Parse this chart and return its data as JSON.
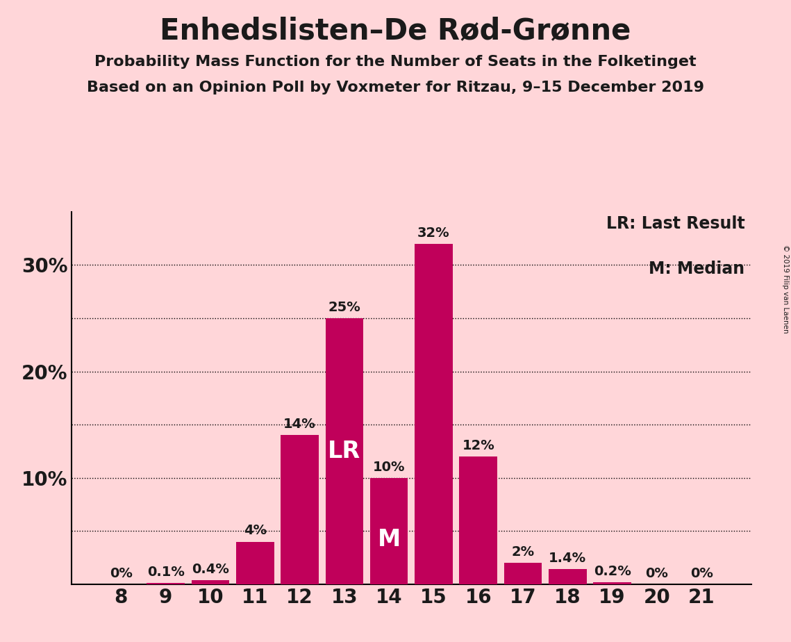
{
  "title": "Enhedslisten–De Rød-Grønne",
  "subtitle1": "Probability Mass Function for the Number of Seats in the Folketinget",
  "subtitle2": "Based on an Opinion Poll by Voxmeter for Ritzau, 9–15 December 2019",
  "copyright": "© 2019 Filip van Laenen",
  "categories": [
    8,
    9,
    10,
    11,
    12,
    13,
    14,
    15,
    16,
    17,
    18,
    19,
    20,
    21
  ],
  "values": [
    0.0,
    0.1,
    0.4,
    4.0,
    14.0,
    25.0,
    10.0,
    32.0,
    12.0,
    2.0,
    1.4,
    0.2,
    0.0,
    0.0
  ],
  "labels": [
    "0%",
    "0.1%",
    "0.4%",
    "4%",
    "14%",
    "25%",
    "10%",
    "32%",
    "12%",
    "2%",
    "1.4%",
    "0.2%",
    "0%",
    "0%"
  ],
  "bar_color": "#C0005A",
  "background_color": "#FFD6D9",
  "text_color": "#1a1a1a",
  "lr_seat": 13,
  "median_seat": 14,
  "lr_label": "LR",
  "median_label": "M",
  "legend_lr": "LR: Last Result",
  "legend_m": "M: Median",
  "ylim": [
    0,
    35
  ],
  "yticks": [
    0,
    10,
    20,
    30
  ],
  "ytick_labels": [
    "",
    "10%",
    "20%",
    "30%"
  ],
  "grid_lines": [
    5,
    10,
    15,
    20,
    25,
    30
  ],
  "title_fontsize": 30,
  "subtitle_fontsize": 16,
  "label_fontsize": 14,
  "axis_fontsize": 20
}
